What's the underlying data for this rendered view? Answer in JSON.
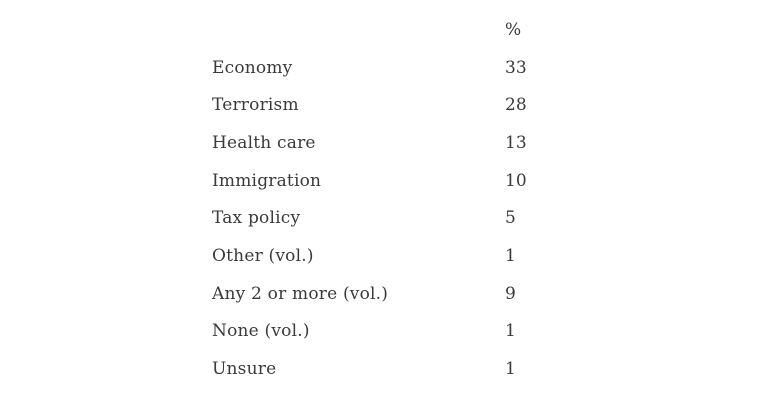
{
  "colors": {
    "background": "#ffffff",
    "text": "#3a3a3a"
  },
  "table": {
    "value_header": "%",
    "rows": [
      {
        "label": "Economy",
        "value": "33"
      },
      {
        "label": "Terrorism",
        "value": "28"
      },
      {
        "label": "Health care",
        "value": "13"
      },
      {
        "label": "Immigration",
        "value": "10"
      },
      {
        "label": "Tax policy",
        "value": "5"
      },
      {
        "label": "Other (vol.)",
        "value": "1"
      },
      {
        "label": "Any 2 or more (vol.)",
        "value": "9"
      },
      {
        "label": "None (vol.)",
        "value": "1"
      },
      {
        "label": "Unsure",
        "value": "1"
      }
    ]
  },
  "chart_data": {
    "type": "table",
    "columns": [
      "",
      "%"
    ],
    "categories": [
      "Economy",
      "Terrorism",
      "Health care",
      "Immigration",
      "Tax policy",
      "Other (vol.)",
      "Any 2 or more (vol.)",
      "None (vol.)",
      "Unsure"
    ],
    "values": [
      33,
      28,
      13,
      10,
      5,
      1,
      9,
      1,
      1
    ],
    "title": "",
    "xlabel": "",
    "ylabel": "%"
  }
}
